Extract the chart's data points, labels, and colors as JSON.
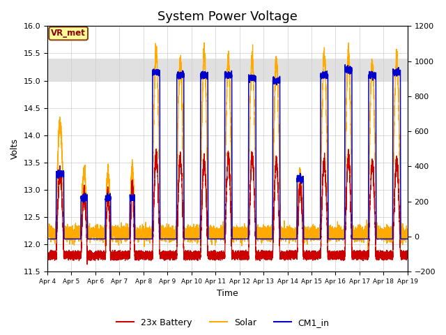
{
  "title": "System Power Voltage",
  "xlabel": "Time",
  "ylabel": "Volts",
  "xlim": [
    4,
    19
  ],
  "ylim_left": [
    11.5,
    16.0
  ],
  "ylim_right": [
    -200,
    1200
  ],
  "xtick_positions": [
    4,
    5,
    6,
    7,
    8,
    9,
    10,
    11,
    12,
    13,
    14,
    15,
    16,
    17,
    18,
    19
  ],
  "xtick_labels": [
    "Apr 4",
    "Apr 5",
    "Apr 6",
    "Apr 7",
    "Apr 8",
    "Apr 9",
    "Apr 10",
    "Apr 11",
    "Apr 12",
    "Apr 13",
    "Apr 14",
    "Apr 15",
    "Apr 16",
    "Apr 17",
    "Apr 18",
    "Apr 19"
  ],
  "color_battery": "#cc0000",
  "color_solar": "#ffaa00",
  "color_cm1": "#0000cc",
  "legend_labels": [
    "23x Battery",
    "Solar",
    "CM1_in"
  ],
  "annotation_text": "VR_met",
  "annotation_fg": "#8b0000",
  "annotation_bg": "#ffff99",
  "annotation_edge": "#8b4513",
  "shading_ymin": 15.0,
  "shading_ymax": 15.4,
  "shading_color": "#e0e0e0",
  "grid_color": "#cccccc",
  "bg_color": "#ffffff",
  "title_fontsize": 13,
  "axis_fontsize": 9,
  "tick_fontsize": 8,
  "legend_fontsize": 9,
  "lw_battery": 0.9,
  "lw_solar": 0.9,
  "lw_cm1": 1.1,
  "day_solar_peaks": [
    14.2,
    13.3,
    13.3,
    13.4,
    15.55,
    15.35,
    15.5,
    15.4,
    15.45,
    15.35,
    13.3,
    15.45,
    15.5,
    15.3,
    15.45
  ],
  "day_bat_peaks": [
    13.3,
    12.9,
    12.9,
    13.1,
    13.6,
    13.6,
    13.5,
    13.6,
    13.6,
    13.5,
    13.1,
    13.5,
    13.6,
    13.5,
    13.5
  ],
  "day_cm1_peaks": [
    13.3,
    12.85,
    12.85,
    12.85,
    15.15,
    15.1,
    15.1,
    15.1,
    15.05,
    15.0,
    13.2,
    15.1,
    15.2,
    15.1,
    15.15
  ],
  "day_starts": [
    0.35,
    0.38,
    0.4,
    0.42,
    0.36,
    0.37,
    0.36,
    0.37,
    0.36,
    0.37,
    0.38,
    0.36,
    0.37,
    0.36,
    0.37
  ],
  "day_ends": [
    0.7,
    0.68,
    0.65,
    0.65,
    0.7,
    0.7,
    0.7,
    0.7,
    0.7,
    0.7,
    0.68,
    0.7,
    0.7,
    0.7,
    0.72
  ],
  "night_battery": -200,
  "cm1_night": 0
}
